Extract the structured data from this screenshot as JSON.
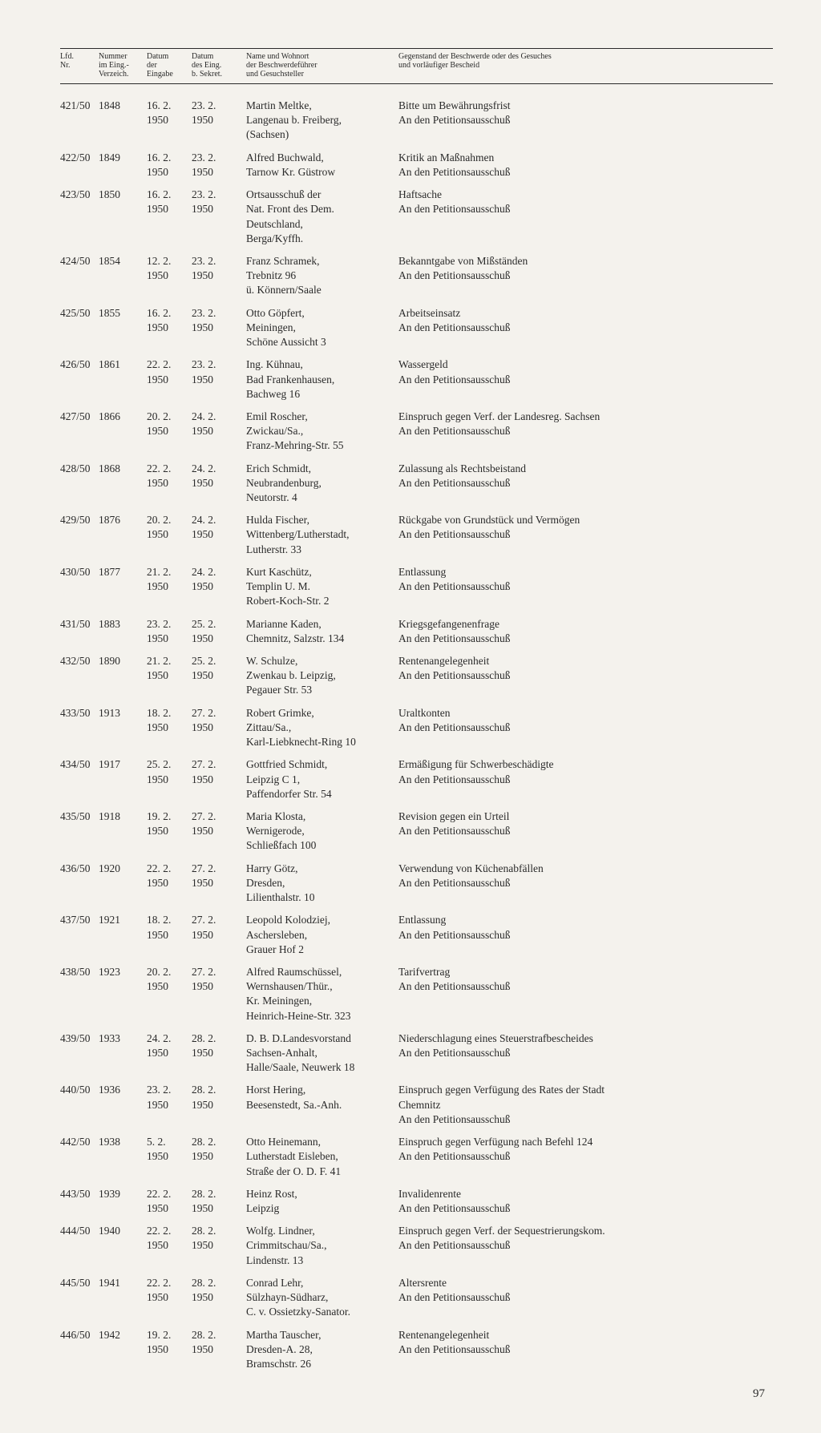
{
  "header": {
    "lfd": "Lfd.\nNr.",
    "nr": "Nummer\nim Eing.-\nVerzeich.",
    "date1": "Datum\nder\nEingabe",
    "date2": "Datum\ndes Eing.\nb. Sekret.",
    "name": "Name und Wohnort\nder Beschwerdeführer\nund Gesuchsteller",
    "subject": "Gegenstand der Beschwerde oder des Gesuches\nund vorläufiger Bescheid"
  },
  "rows": [
    {
      "lfd": "421/50",
      "nr": "1848",
      "d1": "16. 2.\n1950",
      "d2": "23. 2.\n1950",
      "name": "Martin Meltke,\nLangenau b. Freiberg,\n(Sachsen)",
      "subject": "Bitte um Bewährungsfrist\nAn den Petitionsausschuß"
    },
    {
      "lfd": "422/50",
      "nr": "1849",
      "d1": "16. 2.\n1950",
      "d2": "23. 2.\n1950",
      "name": "Alfred Buchwald,\nTarnow Kr. Güstrow",
      "subject": "Kritik an Maßnahmen\nAn den Petitionsausschuß"
    },
    {
      "lfd": "423/50",
      "nr": "1850",
      "d1": "16. 2.\n1950",
      "d2": "23. 2.\n1950",
      "name": "Ortsausschuß der\nNat. Front des Dem.\nDeutschland,\nBerga/Kyffh.",
      "subject": "Haftsache\nAn den Petitionsausschuß"
    },
    {
      "lfd": "424/50",
      "nr": "1854",
      "d1": "12. 2.\n1950",
      "d2": "23. 2.\n1950",
      "name": "Franz Schramek,\nTrebnitz 96\nü. Könnern/Saale",
      "subject": "Bekanntgabe von Mißständen\nAn den Petitionsausschuß"
    },
    {
      "lfd": "425/50",
      "nr": "1855",
      "d1": "16. 2.\n1950",
      "d2": "23. 2.\n1950",
      "name": "Otto Göpfert,\nMeiningen,\nSchöne Aussicht 3",
      "subject": "Arbeitseinsatz\nAn den Petitionsausschuß"
    },
    {
      "lfd": "426/50",
      "nr": "1861",
      "d1": "22. 2.\n1950",
      "d2": "23. 2.\n1950",
      "name": "Ing. Kühnau,\nBad Frankenhausen,\nBachweg 16",
      "subject": "Wassergeld\nAn den Petitionsausschuß"
    },
    {
      "lfd": "427/50",
      "nr": "1866",
      "d1": "20. 2.\n1950",
      "d2": "24. 2.\n1950",
      "name": "Emil Roscher,\nZwickau/Sa.,\nFranz-Mehring-Str. 55",
      "subject": "Einspruch gegen Verf. der Landesreg. Sachsen\nAn den Petitionsausschuß"
    },
    {
      "lfd": "428/50",
      "nr": "1868",
      "d1": "22. 2.\n1950",
      "d2": "24. 2.\n1950",
      "name": "Erich Schmidt,\nNeubrandenburg,\nNeutorstr. 4",
      "subject": "Zulassung als Rechtsbeistand\nAn den Petitionsausschuß"
    },
    {
      "lfd": "429/50",
      "nr": "1876",
      "d1": "20. 2.\n1950",
      "d2": "24. 2.\n1950",
      "name": "Hulda Fischer,\nWittenberg/Lutherstadt,\nLutherstr. 33",
      "subject": "Rückgabe von Grundstück und Vermögen\nAn den Petitionsausschuß"
    },
    {
      "lfd": "430/50",
      "nr": "1877",
      "d1": "21. 2.\n1950",
      "d2": "24. 2.\n1950",
      "name": "Kurt Kaschütz,\nTemplin U. M.\nRobert-Koch-Str. 2",
      "subject": "Entlassung\nAn den Petitionsausschuß"
    },
    {
      "lfd": "431/50",
      "nr": "1883",
      "d1": "23. 2.\n1950",
      "d2": "25. 2.\n1950",
      "name": "Marianne Kaden,\nChemnitz, Salzstr. 134",
      "subject": "Kriegsgefangenenfrage\nAn den Petitionsausschuß"
    },
    {
      "lfd": "432/50",
      "nr": "1890",
      "d1": "21. 2.\n1950",
      "d2": "25. 2.\n1950",
      "name": "W. Schulze,\nZwenkau b. Leipzig,\nPegauer Str. 53",
      "subject": "Rentenangelegenheit\nAn den Petitionsausschuß"
    },
    {
      "lfd": "433/50",
      "nr": "1913",
      "d1": "18. 2.\n1950",
      "d2": "27. 2.\n1950",
      "name": "Robert Grimke,\nZittau/Sa.,\nKarl-Liebknecht-Ring 10",
      "subject": "Uraltkonten\nAn den Petitionsausschuß"
    },
    {
      "lfd": "434/50",
      "nr": "1917",
      "d1": "25. 2.\n1950",
      "d2": "27. 2.\n1950",
      "name": "Gottfried Schmidt,\nLeipzig C 1,\nPaffendorfer Str. 54",
      "subject": "Ermäßigung für Schwerbeschädigte\nAn den Petitionsausschuß"
    },
    {
      "lfd": "435/50",
      "nr": "1918",
      "d1": "19. 2.\n1950",
      "d2": "27. 2.\n1950",
      "name": "Maria Klosta,\nWernigerode,\nSchließfach 100",
      "subject": "Revision gegen ein Urteil\nAn den Petitionsausschuß"
    },
    {
      "lfd": "436/50",
      "nr": "1920",
      "d1": "22. 2.\n1950",
      "d2": "27. 2.\n1950",
      "name": "Harry Götz,\nDresden,\nLilienthalstr. 10",
      "subject": "Verwendung von Küchenabfällen\nAn den Petitionsausschuß"
    },
    {
      "lfd": "437/50",
      "nr": "1921",
      "d1": "18. 2.\n1950",
      "d2": "27. 2.\n1950",
      "name": "Leopold Kolodziej,\nAschersleben,\nGrauer Hof 2",
      "subject": "Entlassung\nAn den Petitionsausschuß"
    },
    {
      "lfd": "438/50",
      "nr": "1923",
      "d1": "20. 2.\n1950",
      "d2": "27. 2.\n1950",
      "name": "Alfred Raumschüssel,\nWernshausen/Thür.,\nKr. Meiningen,\nHeinrich-Heine-Str. 323",
      "subject": "Tarifvertrag\nAn den Petitionsausschuß"
    },
    {
      "lfd": "439/50",
      "nr": "1933",
      "d1": "24. 2.\n1950",
      "d2": "28. 2.\n1950",
      "name": "D. B. D.Landesvorstand\nSachsen-Anhalt,\nHalle/Saale,  Neuwerk 18",
      "subject": "Niederschlagung eines Steuerstrafbescheides\nAn den Petitionsausschuß"
    },
    {
      "lfd": "440/50",
      "nr": "1936",
      "d1": "23. 2.\n1950",
      "d2": "28. 2.\n1950",
      "name": "Horst Hering,\nBeesenstedt,  Sa.-Anh.",
      "subject": "Einspruch gegen Verfügung des Rates der Stadt\nChemnitz\nAn den Petitionsausschuß"
    },
    {
      "lfd": "442/50",
      "nr": "1938",
      "d1": "5. 2.\n1950",
      "d2": "28. 2.\n1950",
      "name": "Otto Heinemann,\nLutherstadt Eisleben,\nStraße der O. D. F. 41",
      "subject": "Einspruch gegen Verfügung nach Befehl 124\nAn den Petitionsausschuß"
    },
    {
      "lfd": "443/50",
      "nr": "1939",
      "d1": "22. 2.\n1950",
      "d2": "28. 2.\n1950",
      "name": "Heinz Rost,\nLeipzig",
      "subject": "Invalidenrente\nAn den Petitionsausschuß"
    },
    {
      "lfd": "444/50",
      "nr": "1940",
      "d1": "22. 2.\n1950",
      "d2": "28. 2.\n1950",
      "name": "Wolfg. Lindner,\nCrimmitschau/Sa.,\nLindenstr. 13",
      "subject": "Einspruch gegen Verf. der Sequestrierungskom.\nAn den Petitionsausschuß"
    },
    {
      "lfd": "445/50",
      "nr": "1941",
      "d1": "22. 2.\n1950",
      "d2": "28. 2.\n1950",
      "name": "Conrad Lehr,\nSülzhayn-Südharz,\nC. v. Ossietzky-Sanator.",
      "subject": "Altersrente\nAn den Petitionsausschuß"
    },
    {
      "lfd": "446/50",
      "nr": "1942",
      "d1": "19. 2.\n1950",
      "d2": "28. 2.\n1950",
      "name": "Martha Tauscher,\nDresden-A. 28,\nBramschstr. 26",
      "subject": "Rentenangelegenheit\nAn den Petitionsausschuß"
    }
  ],
  "pageNumber": "97"
}
